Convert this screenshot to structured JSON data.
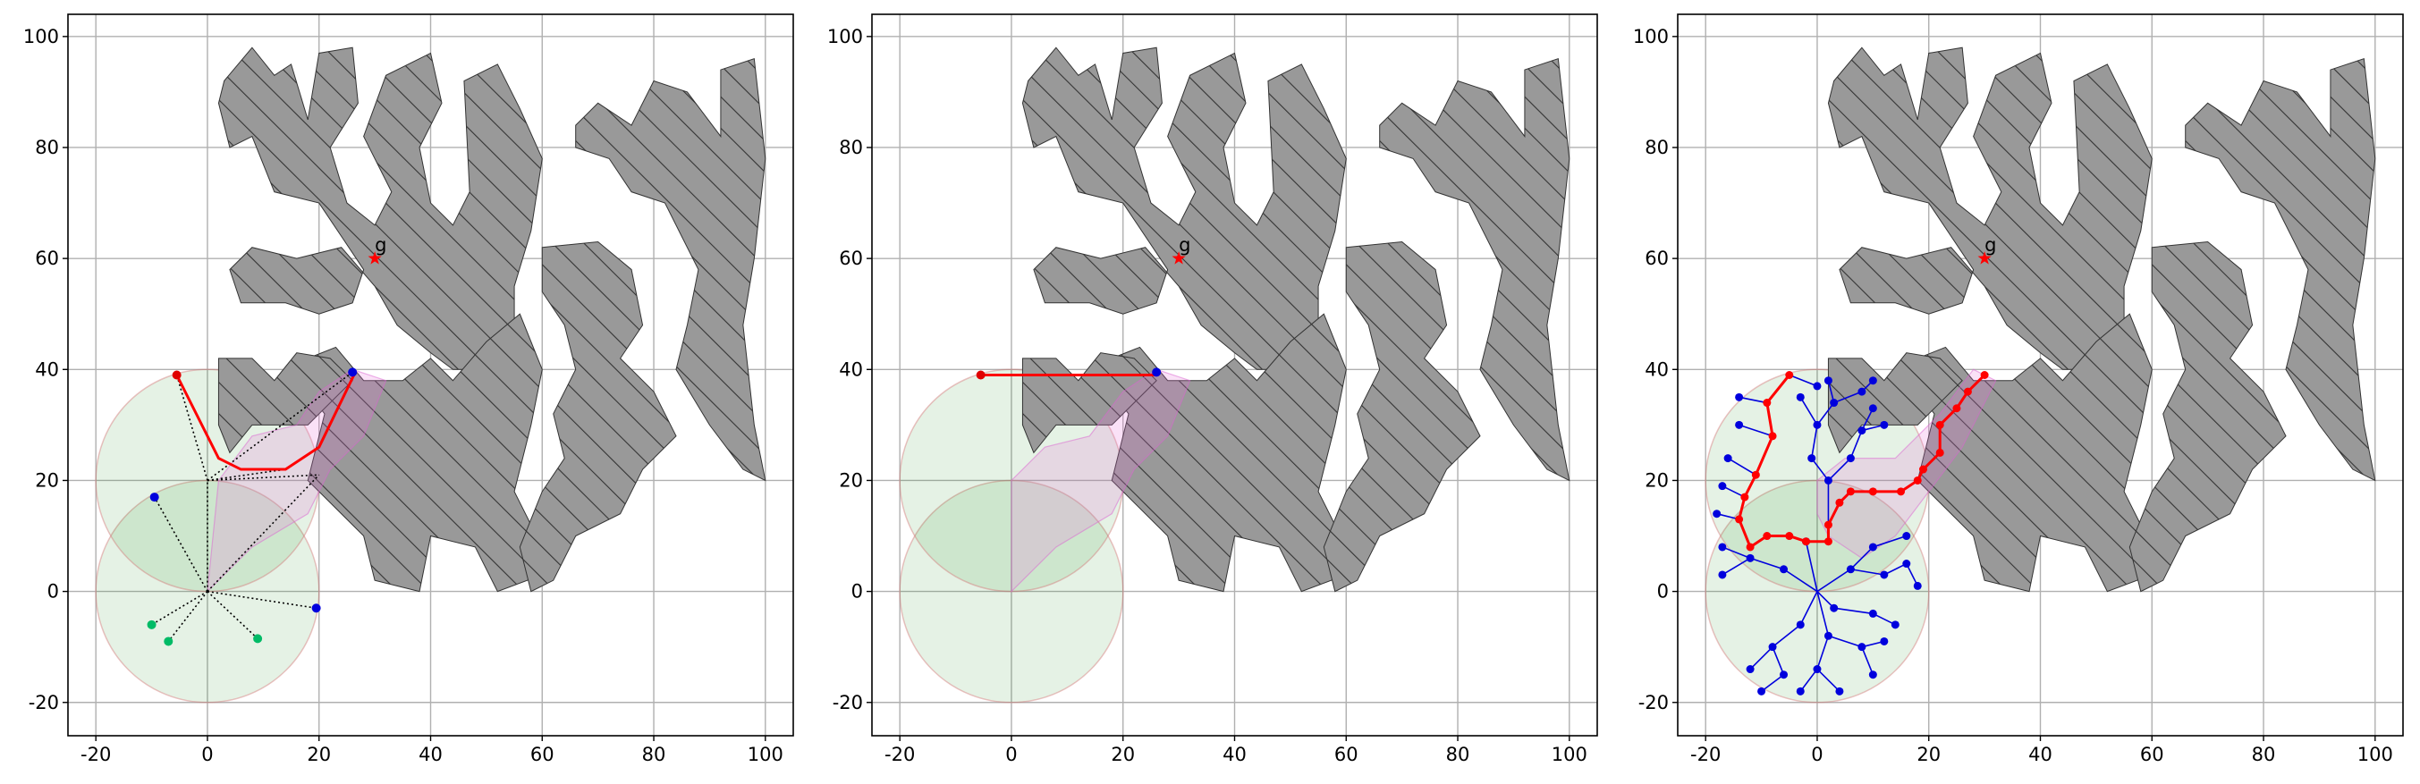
{
  "chart_data": [
    {
      "type": "planning",
      "xlim": [
        -25,
        105
      ],
      "ylim": [
        -26,
        104
      ],
      "xticks": [
        -20,
        0,
        20,
        40,
        60,
        80,
        100
      ],
      "yticks": [
        -20,
        0,
        20,
        40,
        60,
        80,
        100
      ],
      "grid": true,
      "goal": {
        "x": 30,
        "y": 60,
        "label": "g",
        "color": "#ff0000"
      },
      "regions": [
        {
          "cx": 0,
          "cy": 0,
          "r": 20
        },
        {
          "cx": 0,
          "cy": 20,
          "r": 20
        }
      ],
      "corridor": {
        "x": [
          2,
          8,
          16,
          20,
          26,
          32,
          28,
          22,
          18,
          8,
          0
        ],
        "y": [
          20,
          28,
          30,
          36,
          40,
          38,
          28,
          22,
          14,
          8,
          0
        ]
      },
      "edge_color": "#000000",
      "edge_dash": true,
      "edge_nodes": false,
      "edges": [
        [
          0,
          0,
          -9.5,
          17
        ],
        [
          0,
          0,
          -10,
          -6
        ],
        [
          0,
          0,
          -7,
          -9
        ],
        [
          0,
          0,
          9,
          -8.5
        ],
        [
          0,
          0,
          19.5,
          -3
        ],
        [
          0,
          0,
          0,
          20
        ],
        [
          0,
          0,
          20,
          21
        ],
        [
          0,
          20,
          -5.5,
          39
        ],
        [
          0,
          20,
          20,
          21
        ],
        [
          0,
          20,
          26,
          39.5
        ],
        [
          0,
          20,
          14,
          22
        ]
      ],
      "path": {
        "x": [
          -5.5,
          2,
          6,
          14,
          20,
          26.5
        ],
        "y": [
          39,
          24,
          22,
          22,
          26,
          39.5
        ],
        "color": "#ff0000"
      },
      "points": [
        {
          "x": -5.5,
          "y": 39,
          "color": "#e00000"
        },
        {
          "x": -9.5,
          "y": 17,
          "color": "#0000dd"
        },
        {
          "x": 19.5,
          "y": -3,
          "color": "#0000dd"
        },
        {
          "x": 26,
          "y": 39.5,
          "color": "#0000dd"
        },
        {
          "x": -10,
          "y": -6,
          "color": "#00bb66"
        },
        {
          "x": -7,
          "y": -9,
          "color": "#00bb66"
        },
        {
          "x": 9,
          "y": -8.5,
          "color": "#00bb66"
        }
      ]
    },
    {
      "type": "planning",
      "xlim": [
        -25,
        105
      ],
      "ylim": [
        -26,
        104
      ],
      "xticks": [
        -20,
        0,
        20,
        40,
        60,
        80,
        100
      ],
      "yticks": [
        -20,
        0,
        20,
        40,
        60,
        80,
        100
      ],
      "grid": true,
      "goal": {
        "x": 30,
        "y": 60,
        "label": "g",
        "color": "#ff0000"
      },
      "regions": [
        {
          "cx": 0,
          "cy": 0,
          "r": 20
        },
        {
          "cx": 0,
          "cy": 20,
          "r": 20
        }
      ],
      "corridor": {
        "x": [
          0,
          6,
          14,
          20,
          26,
          32,
          28,
          22,
          18,
          8,
          0
        ],
        "y": [
          20,
          26,
          28,
          36,
          40,
          38,
          28,
          22,
          14,
          8,
          0
        ]
      },
      "edge_color": "#000000",
      "edge_dash": true,
      "edge_nodes": false,
      "edges": [],
      "path": {
        "x": [
          -5.5,
          26
        ],
        "y": [
          39,
          39
        ],
        "color": "#ff0000"
      },
      "points": [
        {
          "x": -5.5,
          "y": 39,
          "color": "#e00000"
        },
        {
          "x": 26,
          "y": 39.5,
          "color": "#0000dd"
        }
      ]
    },
    {
      "type": "planning",
      "xlim": [
        -25,
        105
      ],
      "ylim": [
        -26,
        104
      ],
      "xticks": [
        -20,
        0,
        20,
        40,
        60,
        80,
        100
      ],
      "yticks": [
        -20,
        0,
        20,
        40,
        60,
        80,
        100
      ],
      "grid": true,
      "goal": {
        "x": 30,
        "y": 60,
        "label": "g",
        "color": "#ff0000"
      },
      "regions": [
        {
          "cx": 0,
          "cy": 0,
          "r": 20
        },
        {
          "cx": 0,
          "cy": 20,
          "r": 20
        }
      ],
      "corridor": {
        "x": [
          0,
          5,
          14,
          22,
          28,
          32,
          26,
          20,
          14,
          8,
          2,
          0
        ],
        "y": [
          20,
          24,
          24,
          32,
          40,
          38,
          26,
          18,
          10,
          6,
          10,
          14
        ]
      },
      "edge_color": "#0000dd",
      "edge_dash": false,
      "edge_nodes": true,
      "edges": [
        [
          0,
          0,
          -6,
          4
        ],
        [
          -6,
          4,
          -12,
          6
        ],
        [
          -12,
          6,
          -17,
          3
        ],
        [
          -12,
          6,
          -17,
          8
        ],
        [
          0,
          0,
          -3,
          -6
        ],
        [
          -3,
          -6,
          -8,
          -10
        ],
        [
          -8,
          -10,
          -12,
          -14
        ],
        [
          -8,
          -10,
          -6,
          -15
        ],
        [
          -6,
          -15,
          -10,
          -18
        ],
        [
          0,
          0,
          2,
          -8
        ],
        [
          2,
          -8,
          0,
          -14
        ],
        [
          0,
          -14,
          -3,
          -18
        ],
        [
          0,
          -14,
          4,
          -18
        ],
        [
          2,
          -8,
          8,
          -10
        ],
        [
          8,
          -10,
          12,
          -9
        ],
        [
          8,
          -10,
          10,
          -15
        ],
        [
          0,
          0,
          6,
          4
        ],
        [
          6,
          4,
          12,
          3
        ],
        [
          12,
          3,
          16,
          5
        ],
        [
          16,
          5,
          18,
          1
        ],
        [
          6,
          4,
          10,
          8
        ],
        [
          10,
          8,
          16,
          10
        ],
        [
          0,
          0,
          3,
          -3
        ],
        [
          3,
          -3,
          10,
          -4
        ],
        [
          10,
          -4,
          14,
          -6
        ],
        [
          -14,
          13,
          -18,
          14
        ],
        [
          -13,
          17,
          -17,
          19
        ],
        [
          -11,
          21,
          -16,
          24
        ],
        [
          -8,
          28,
          -14,
          30
        ],
        [
          -9,
          34,
          -14,
          35
        ],
        [
          -5,
          39,
          0,
          37
        ],
        [
          2,
          12,
          2,
          20
        ],
        [
          2,
          20,
          -1,
          24
        ],
        [
          -1,
          24,
          0,
          30
        ],
        [
          0,
          30,
          -3,
          35
        ],
        [
          0,
          30,
          3,
          34
        ],
        [
          3,
          34,
          2,
          38
        ],
        [
          3,
          34,
          8,
          36
        ],
        [
          8,
          36,
          10,
          38
        ],
        [
          2,
          20,
          6,
          24
        ],
        [
          6,
          24,
          8,
          29
        ],
        [
          8,
          29,
          12,
          30
        ],
        [
          8,
          29,
          10,
          33
        ],
        [
          0,
          0,
          -2,
          9
        ]
      ],
      "path": {
        "x": [
          -5,
          -9,
          -8,
          -11,
          -13,
          -14,
          -12,
          -9,
          -5,
          -2,
          2,
          2,
          4,
          6,
          10,
          15,
          18,
          19,
          22,
          22,
          25,
          27,
          30
        ],
        "y": [
          39,
          34,
          28,
          21,
          17,
          13,
          8,
          10,
          10,
          9,
          9,
          12,
          16,
          18,
          18,
          18,
          20,
          22,
          25,
          30,
          33,
          36,
          39
        ],
        "color": "#ff0000"
      },
      "points": []
    }
  ]
}
